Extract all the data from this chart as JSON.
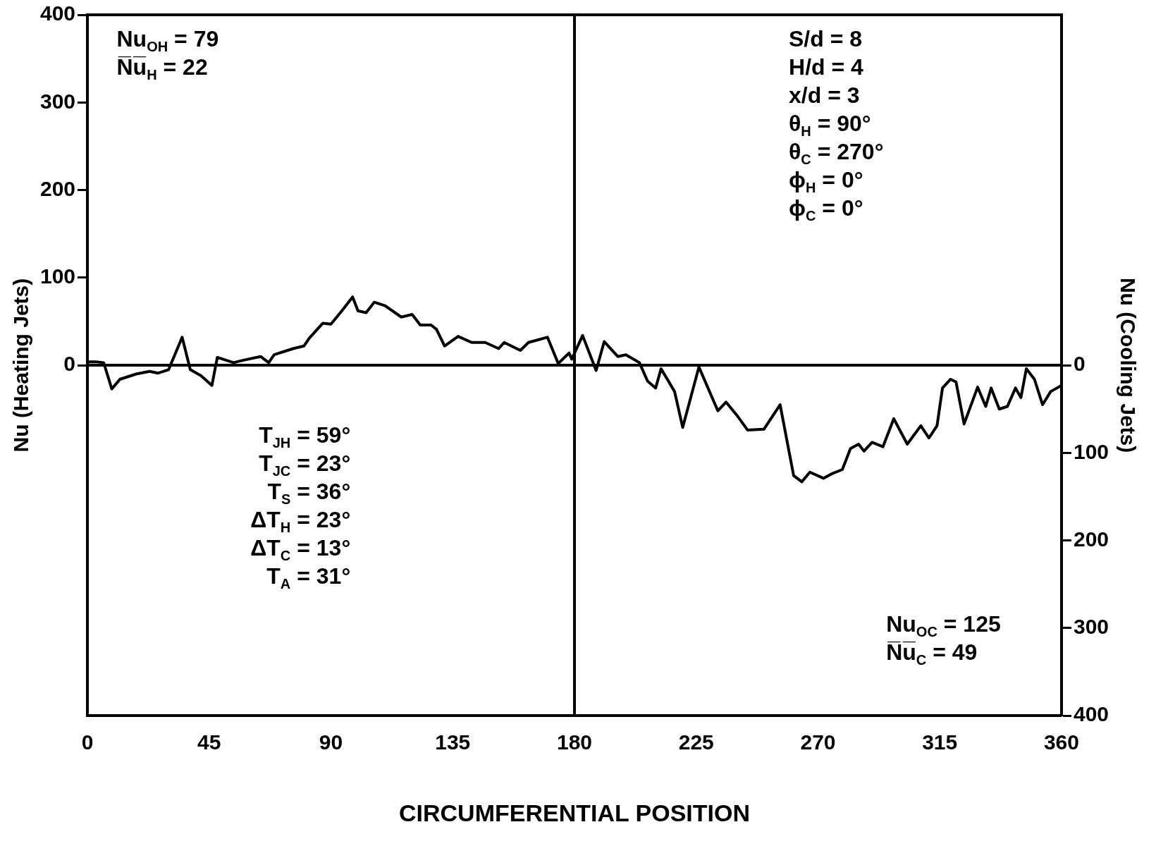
{
  "chart_data": {
    "type": "line",
    "xlabel": "CIRCUMFERENTIAL POSITION",
    "ylabel": "Nu (Heating Jets)",
    "y2label": "Nu (Cooling Jets)",
    "xlim": [
      0,
      360
    ],
    "xticks": [
      0,
      45,
      90,
      135,
      180,
      225,
      270,
      315,
      360
    ],
    "ylim": [
      -400,
      400
    ],
    "yticks": [
      0,
      100,
      200,
      300,
      400
    ],
    "y2lim": [
      400,
      -400
    ],
    "y2ticks": [
      0,
      100,
      200,
      300,
      400
    ],
    "grid": false,
    "legend": false,
    "marker": "none",
    "line_style": "solid",
    "series": [
      {
        "color": "#000000",
        "x": [
          0,
          3,
          6,
          9,
          12,
          18,
          23,
          26,
          30,
          35,
          38,
          42,
          46,
          48,
          54,
          58,
          64,
          67,
          69,
          76,
          80,
          82,
          87,
          90,
          94,
          98,
          100,
          103,
          106,
          110,
          116,
          120,
          123,
          127,
          129,
          132,
          137,
          142,
          147,
          152,
          154,
          160,
          163,
          170,
          174,
          178,
          179,
          183,
          188,
          191,
          196,
          199,
          204,
          207,
          210,
          212,
          217,
          220,
          226,
          233,
          236,
          240,
          244,
          250,
          256,
          261,
          264,
          267,
          272,
          275,
          279,
          282,
          285,
          287,
          290,
          294,
          298,
          303,
          308,
          311,
          314,
          316,
          319,
          321,
          324,
          329,
          332,
          334,
          337,
          340,
          343,
          345,
          347,
          350,
          353,
          356,
          360
        ],
        "values": [
          4,
          4,
          3,
          -27,
          -16,
          -10,
          -7,
          -9,
          -5,
          32,
          -5,
          -12,
          -23,
          9,
          3,
          6,
          10,
          3,
          12,
          19,
          22,
          31,
          48,
          47,
          62,
          78,
          62,
          60,
          72,
          68,
          55,
          58,
          46,
          46,
          41,
          22,
          33,
          26,
          26,
          19,
          26,
          17,
          26,
          32,
          2,
          14,
          7,
          34,
          -6,
          27,
          10,
          12,
          3,
          -18,
          -26,
          -4,
          -30,
          -71,
          -2,
          -52,
          -42,
          -57,
          -74,
          -73,
          -45,
          -126,
          -133,
          -122,
          -129,
          -124,
          -119,
          -95,
          -90,
          -98,
          -88,
          -93,
          -61,
          -90,
          -69,
          -83,
          -69,
          -26,
          -16,
          -19,
          -67,
          -25,
          -47,
          -26,
          -50,
          -47,
          -26,
          -37,
          -4,
          -16,
          -45,
          -30,
          -23
        ]
      }
    ],
    "ref_lines": [
      {
        "axis": "x",
        "value": 180,
        "color": "#000000"
      },
      {
        "axis": "y",
        "value": 0,
        "color": "#000000"
      }
    ],
    "annotations": [
      "Nu$_{OH}$ = 79",
      "N̅u̅$_{H}$ = 22",
      "S/d = 8",
      "H/d = 4",
      "x/d = 3",
      "θ$_{H}$ = 90°",
      "θ$_{C}$ = 270°",
      "ϕ$_{H}$ = 0°",
      "ϕ$_{C}$ = 0°",
      "T$_{JH}$ = 59°",
      "T$_{JC}$ = 23°",
      "T$_{S}$ = 36°",
      "ΔT$_{H}$ = 23°",
      "ΔT$_{C}$ = 13°",
      "T$_{A}$ = 31°",
      "Nu$_{OC}$ = 125",
      "N̅u̅$_{C}$ = 49"
    ]
  }
}
